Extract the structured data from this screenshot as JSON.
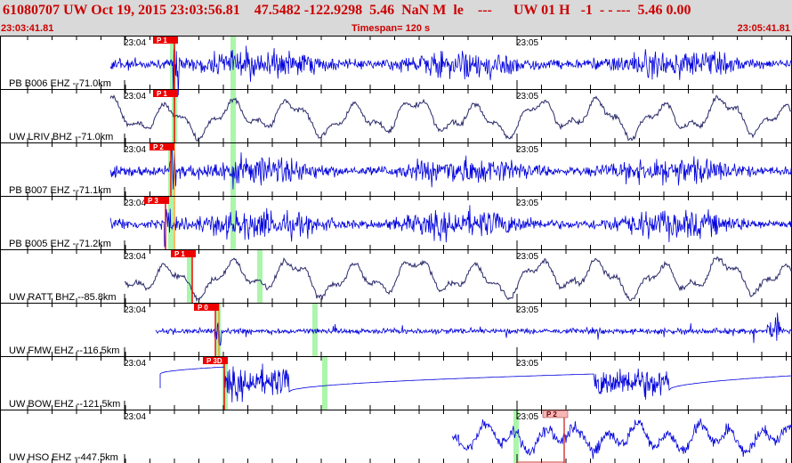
{
  "header": {
    "event_line": "61080707 UW Oct 19, 2015 23:03:56.81    47.5482 -122.9298  5.46  NaN M  le    ---      UW 01 H   -1  - - ---  5.46 0.00",
    "start_time": "23:03:41.81",
    "timespan": "Timespan= 120 s",
    "end_time": "23:05:41.81"
  },
  "time_ticks": [
    "23:04",
    "23:05"
  ],
  "colors": {
    "background": "#ffffff",
    "header_bg": "#d9d9d9",
    "header_text": "#cc0000",
    "trace_blue": "#0000dd",
    "trace_dark": "#2a2a6a",
    "pick_red": "#ee0000",
    "pick_pink": "#f6b6b6",
    "green_marker": "#9cf59c",
    "tick": "#000000"
  },
  "traces": [
    {
      "label": "PB B006 EHZ --71.0km",
      "trace_color": "trace_blue",
      "style": "noise",
      "pick": "P 1",
      "pick_color": "pick_red"
    },
    {
      "label": "UW LRIV BHZ --71.0km",
      "trace_color": "trace_dark",
      "style": "wave",
      "pick": "P 1",
      "pick_color": "pick_red"
    },
    {
      "label": "PB B007 EHZ --71.1km",
      "trace_color": "trace_blue",
      "style": "noise",
      "pick": "P 2",
      "pick_color": "pick_red"
    },
    {
      "label": "PB B005 EHZ --71.2km",
      "trace_color": "trace_blue",
      "style": "noise",
      "pick": "P 3",
      "pick_color": "pick_red"
    },
    {
      "label": "UW RATT BHZ --85.8km",
      "trace_color": "trace_dark",
      "style": "wave",
      "pick": "P 1",
      "pick_color": "pick_red"
    },
    {
      "label": "UW FMW EHZ --116.5km",
      "trace_color": "trace_blue",
      "style": "spiky",
      "pick": "P 0",
      "pick_color": "pick_red"
    },
    {
      "label": "UW BOW EHZ --121.5km",
      "trace_color": "trace_blue",
      "style": "clipped",
      "pick": "P 3D",
      "pick_color": "pick_red"
    },
    {
      "label": "UW HSO EHZ --447.5km",
      "trace_color": "trace_blue",
      "style": "late",
      "pick": "P 2",
      "pick_color": "pick_pink"
    }
  ]
}
